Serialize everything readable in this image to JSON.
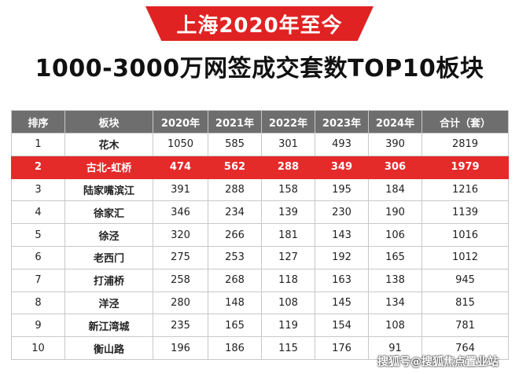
{
  "banner": "上海2020年至今",
  "title": "1000-3000万网签成交套数TOP10板块",
  "headers": [
    "排序",
    "板块",
    "2020年",
    "2021年",
    "2022年",
    "2023年",
    "2024年",
    "合计（套）"
  ],
  "rows": [
    [
      "1",
      "花木",
      "1050",
      "585",
      "301",
      "493",
      "390",
      "2819"
    ],
    [
      "2",
      "古北-虹桥",
      "474",
      "562",
      "288",
      "349",
      "306",
      "1979"
    ],
    [
      "3",
      "陆家嘴滨江",
      "391",
      "288",
      "158",
      "195",
      "184",
      "1216"
    ],
    [
      "4",
      "徐家汇",
      "346",
      "234",
      "139",
      "230",
      "190",
      "1139"
    ],
    [
      "5",
      "徐泾",
      "320",
      "266",
      "181",
      "143",
      "106",
      "1016"
    ],
    [
      "6",
      "老西门",
      "275",
      "253",
      "127",
      "192",
      "165",
      "1012"
    ],
    [
      "7",
      "打浦桥",
      "258",
      "268",
      "118",
      "163",
      "138",
      "945"
    ],
    [
      "8",
      "洋泾",
      "280",
      "148",
      "108",
      "145",
      "134",
      "815"
    ],
    [
      "9",
      "新江湾城",
      "235",
      "165",
      "119",
      "154",
      "108",
      "781"
    ],
    [
      "10",
      "衡山路",
      "196",
      "186",
      "115",
      "176",
      "91",
      "764"
    ]
  ],
  "highlight_row": 1,
  "colors": {
    "banner": "#e02222",
    "header": "#6e6e6e",
    "highlight": "#e52a2a"
  },
  "watermark": "搜狐号@搜狐焦点置业站"
}
